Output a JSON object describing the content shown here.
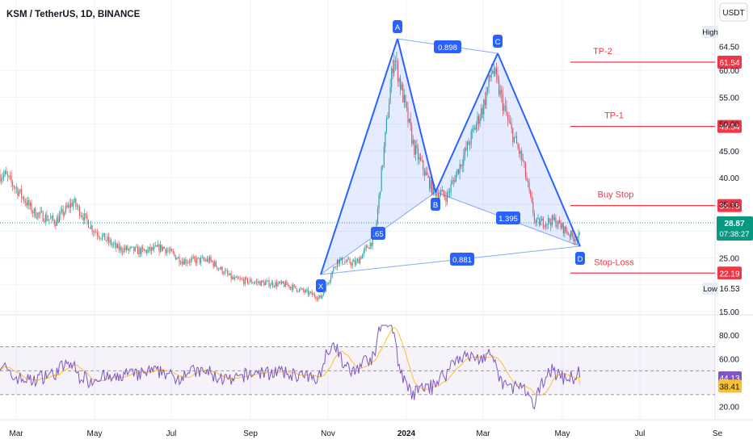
{
  "header": {
    "symbol_title": "KSM / TetherUS, 1D, BINANCE",
    "currency": "USDT"
  },
  "price_axis": {
    "ticks": [
      "64.50",
      "60.00",
      "55.00",
      "50.00",
      "45.00",
      "40.00",
      "35.00",
      "30.00",
      "25.00",
      "20.00",
      "15.00"
    ],
    "high_label": "High",
    "low_label": "Low",
    "low_value": "16.53",
    "current_price": "28.87",
    "countdown": "07:38:27"
  },
  "rsi_axis": {
    "ticks": [
      "80.00",
      "60.00",
      "40.00",
      "20.00"
    ],
    "rsi_value": "44.13",
    "rsi_ma_value": "38.41"
  },
  "time_axis": {
    "labels": [
      "Mar",
      "May",
      "Jul",
      "Sep",
      "Nov",
      "2024",
      "Mar",
      "May",
      "Jul",
      "Se"
    ]
  },
  "levels": [
    {
      "label": "TP-2",
      "price": "61.54"
    },
    {
      "label": "TP-1",
      "price": "49.54"
    },
    {
      "label": "Buy Stop",
      "price": "34.78"
    },
    {
      "label": "Stop-Loss",
      "price": "22.19"
    }
  ],
  "pattern": {
    "points": [
      "X",
      "A",
      "B",
      "C",
      "D"
    ],
    "ratios": {
      "ac": "0.898",
      "bd": "1.395",
      "xd": "0.881",
      "xb": ".65"
    }
  },
  "colors": {
    "up": "#26a69a",
    "down": "#ef5350",
    "pattern": "#2962ff",
    "level": "#f23645",
    "rsi": "#7e57c2",
    "rsi_ma": "#fbc02d"
  },
  "chart_data": {
    "type": "candlestick",
    "title": "KSM / TetherUS, 1D, BINANCE",
    "x_range": [
      "2023-02",
      "2024-09"
    ],
    "ylim": [
      15,
      64.5
    ],
    "close_series": [
      {
        "date": "2023-02-20",
        "value": 40.5
      },
      {
        "date": "2023-03-01",
        "value": 38.0
      },
      {
        "date": "2023-03-15",
        "value": 33.5
      },
      {
        "date": "2023-04-01",
        "value": 31.8
      },
      {
        "date": "2023-04-15",
        "value": 35.5
      },
      {
        "date": "2023-05-01",
        "value": 30.3
      },
      {
        "date": "2023-05-20",
        "value": 26.8
      },
      {
        "date": "2023-06-10",
        "value": 26.2
      },
      {
        "date": "2023-06-25",
        "value": 27.0
      },
      {
        "date": "2023-07-10",
        "value": 24.5
      },
      {
        "date": "2023-08-01",
        "value": 24.6
      },
      {
        "date": "2023-08-20",
        "value": 21.0
      },
      {
        "date": "2023-09-10",
        "value": 20.4
      },
      {
        "date": "2023-10-01",
        "value": 20.0
      },
      {
        "date": "2023-10-20",
        "value": 18.3
      },
      {
        "date": "2023-10-28",
        "value": 17.5
      },
      {
        "date": "2023-11-10",
        "value": 24.5
      },
      {
        "date": "2023-11-25",
        "value": 24.0
      },
      {
        "date": "2023-12-10",
        "value": 29.0
      },
      {
        "date": "2023-12-25",
        "value": 63.0
      },
      {
        "date": "2024-01-10",
        "value": 45.5
      },
      {
        "date": "2024-01-25",
        "value": 37.5
      },
      {
        "date": "2024-02-05",
        "value": 36.5
      },
      {
        "date": "2024-02-20",
        "value": 45.0
      },
      {
        "date": "2024-03-05",
        "value": 53.5
      },
      {
        "date": "2024-03-12",
        "value": 60.5
      },
      {
        "date": "2024-03-25",
        "value": 50.0
      },
      {
        "date": "2024-04-05",
        "value": 43.0
      },
      {
        "date": "2024-04-15",
        "value": 31.5
      },
      {
        "date": "2024-04-30",
        "value": 32.0
      },
      {
        "date": "2024-05-15",
        "value": 28.87
      }
    ],
    "pattern_points": [
      {
        "label": "X",
        "date": "2023-10-28",
        "price": 17.5
      },
      {
        "label": "A",
        "date": "2023-12-26",
        "price": 63.5
      },
      {
        "label": "B",
        "date": "2024-02-05",
        "price": 34.0
      },
      {
        "label": "C",
        "date": "2024-03-12",
        "price": 61.5
      },
      {
        "label": "D",
        "date": "2024-05-15",
        "price": 24.5
      }
    ],
    "rsi": {
      "ylim": [
        15,
        90
      ],
      "bands": [
        30,
        70
      ],
      "last": 44.13,
      "ma_last": 38.41
    }
  }
}
